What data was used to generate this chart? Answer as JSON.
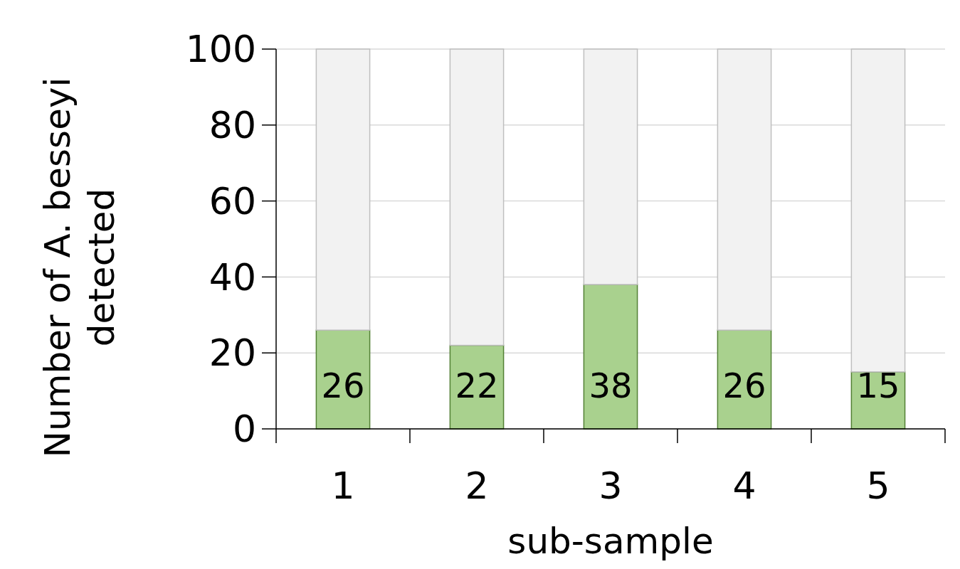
{
  "chart_data": {
    "type": "bar",
    "stacked": true,
    "xlabel": "sub-sample",
    "ylabel": "Number of A. besseyi\ndetected",
    "categories": [
      "1",
      "2",
      "3",
      "4",
      "5"
    ],
    "series": [
      {
        "color": "#a9d18e",
        "values": [
          26,
          22,
          38,
          26,
          15
        ],
        "value_labels": [
          "26",
          "22",
          "38",
          "26",
          "15"
        ]
      },
      {
        "color": "#f2f2f2",
        "values": [
          74,
          78,
          62,
          74,
          85
        ]
      }
    ],
    "ylim": [
      0,
      100
    ],
    "yticks": [
      0,
      20,
      40,
      60,
      80,
      100
    ],
    "grid": "y"
  }
}
